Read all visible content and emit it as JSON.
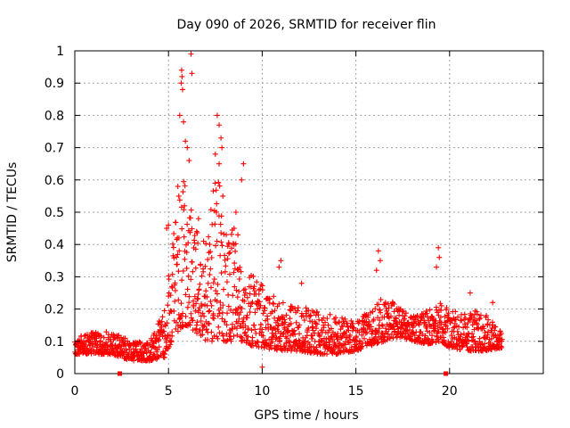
{
  "chart_data": {
    "type": "scatter",
    "title": "Day 090 of 2026, SRMTID for receiver flin",
    "xlabel": "GPS time / hours",
    "ylabel": "SRMTID / TECUs",
    "xlim": [
      0,
      25
    ],
    "ylim": [
      0,
      1
    ],
    "xticks": [
      0,
      5,
      10,
      15,
      20
    ],
    "xtick_labels": [
      "0",
      "5",
      "10",
      "15",
      "20"
    ],
    "yticks": [
      0,
      0.1,
      0.2,
      0.3,
      0.4,
      0.5,
      0.6,
      0.7,
      0.8,
      0.9,
      1
    ],
    "ytick_labels": [
      "0",
      "0.1",
      "0.2",
      "0.3",
      "0.4",
      "0.5",
      "0.6",
      "0.7",
      "0.8",
      "0.9",
      "1"
    ],
    "grid": true,
    "marker": "+",
    "color": "#ff0000",
    "axis_markers_x": [
      2.4,
      19.8
    ],
    "series": [
      {
        "name": "SRMTID",
        "envelope_x": [
          0.0,
          1.0,
          2.0,
          3.0,
          4.0,
          4.8,
          5.2,
          5.6,
          6.0,
          6.4,
          7.0,
          7.6,
          8.0,
          8.6,
          9.0,
          9.6,
          10.0,
          11.0,
          12.0,
          13.0,
          14.0,
          15.0,
          16.0,
          16.5,
          17.0,
          17.5,
          18.0,
          19.0,
          19.5,
          20.0,
          21.0,
          21.5,
          22.0,
          22.8
        ],
        "envelope_lo": [
          0.06,
          0.06,
          0.06,
          0.04,
          0.04,
          0.05,
          0.1,
          0.14,
          0.15,
          0.12,
          0.1,
          0.1,
          0.1,
          0.1,
          0.1,
          0.08,
          0.08,
          0.07,
          0.07,
          0.06,
          0.06,
          0.07,
          0.09,
          0.1,
          0.11,
          0.11,
          0.1,
          0.09,
          0.1,
          0.08,
          0.07,
          0.07,
          0.07,
          0.08
        ],
        "envelope_hi": [
          0.11,
          0.13,
          0.13,
          0.1,
          0.1,
          0.2,
          0.4,
          0.6,
          0.62,
          0.45,
          0.42,
          0.65,
          0.45,
          0.45,
          0.32,
          0.3,
          0.28,
          0.22,
          0.22,
          0.19,
          0.18,
          0.17,
          0.2,
          0.26,
          0.22,
          0.2,
          0.18,
          0.2,
          0.22,
          0.2,
          0.19,
          0.2,
          0.18,
          0.14
        ],
        "samples_per_hour": 80,
        "highlights": [
          [
            5.7,
            0.94
          ],
          [
            5.72,
            0.92
          ],
          [
            5.68,
            0.9
          ],
          [
            5.75,
            0.88
          ],
          [
            5.6,
            0.8
          ],
          [
            5.8,
            0.78
          ],
          [
            6.2,
            0.99
          ],
          [
            6.25,
            0.93
          ],
          [
            6.0,
            0.7
          ],
          [
            5.9,
            0.72
          ],
          [
            6.1,
            0.66
          ],
          [
            7.6,
            0.8
          ],
          [
            7.7,
            0.77
          ],
          [
            7.8,
            0.73
          ],
          [
            7.5,
            0.68
          ],
          [
            7.85,
            0.7
          ],
          [
            7.7,
            0.65
          ],
          [
            9.0,
            0.65
          ],
          [
            8.9,
            0.6
          ],
          [
            5.5,
            0.58
          ],
          [
            5.55,
            0.55
          ],
          [
            7.9,
            0.55
          ],
          [
            8.6,
            0.5
          ],
          [
            8.5,
            0.45
          ],
          [
            8.7,
            0.43
          ],
          [
            4.9,
            0.45
          ],
          [
            5.0,
            0.46
          ],
          [
            6.6,
            0.48
          ],
          [
            6.5,
            0.44
          ],
          [
            11.0,
            0.35
          ],
          [
            10.9,
            0.33
          ],
          [
            16.2,
            0.38
          ],
          [
            16.3,
            0.35
          ],
          [
            16.1,
            0.32
          ],
          [
            19.4,
            0.39
          ],
          [
            19.45,
            0.36
          ],
          [
            19.3,
            0.33
          ],
          [
            12.1,
            0.28
          ],
          [
            21.1,
            0.25
          ],
          [
            22.3,
            0.22
          ],
          [
            10.0,
            0.02
          ],
          [
            2.4,
            0.09
          ]
        ]
      }
    ]
  }
}
